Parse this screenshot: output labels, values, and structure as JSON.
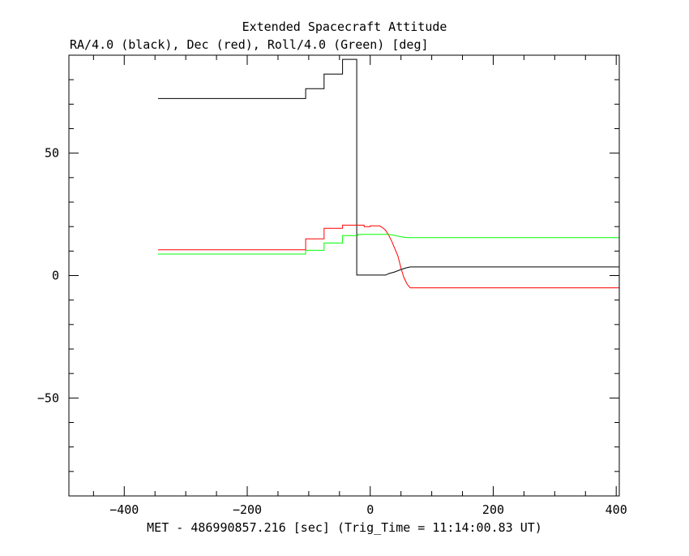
{
  "chart_data": {
    "type": "line",
    "title": "Extended Spacecraft Attitude",
    "subtitle": "RA/4.0 (black), Dec (red), Roll/4.0 (Green) [deg]",
    "xlabel": "MET - 486990857.216 [sec] (Trig_Time = 11:14:00.83 UT)",
    "ylabel": "",
    "xlim": [
      -490,
      405
    ],
    "ylim": [
      -90,
      90
    ],
    "x_ticks": [
      -400,
      -200,
      0,
      200,
      400
    ],
    "y_ticks": [
      -50,
      0,
      50
    ],
    "x_tick_labels": [
      "−400",
      "−200",
      "0",
      "200",
      "400"
    ],
    "y_tick_labels": [
      "−50",
      "0",
      "50"
    ],
    "grid": false,
    "colors": {
      "RA": "#000000",
      "Dec": "#ff0000",
      "Roll": "#00ff00"
    },
    "series": [
      {
        "name": "RA/4.0",
        "color": "#000000",
        "step": true,
        "points": [
          [
            -345,
            72.3
          ],
          [
            -105,
            72.3
          ],
          [
            -105,
            76.3
          ],
          [
            -75,
            76.3
          ],
          [
            -75,
            82.3
          ],
          [
            -45,
            82.3
          ],
          [
            -45,
            88.3
          ],
          [
            -22,
            88.3
          ],
          [
            -22,
            0.2
          ],
          [
            25,
            0.2
          ],
          [
            30,
            0.8
          ],
          [
            40,
            1.5
          ],
          [
            50,
            2.5
          ],
          [
            58,
            3.1
          ],
          [
            65,
            3.5
          ],
          [
            405,
            3.5
          ]
        ]
      },
      {
        "name": "Dec",
        "color": "#ff0000",
        "step": true,
        "points": [
          [
            -345,
            10.5
          ],
          [
            -105,
            10.5
          ],
          [
            -105,
            15
          ],
          [
            -75,
            15
          ],
          [
            -75,
            19.3
          ],
          [
            -45,
            19.3
          ],
          [
            -45,
            20.6
          ],
          [
            -10,
            20.6
          ],
          [
            -10,
            20
          ],
          [
            0,
            20
          ],
          [
            0,
            20.3
          ],
          [
            15,
            20.3
          ],
          [
            20,
            19.6
          ],
          [
            25,
            18.5
          ],
          [
            30,
            16.5
          ],
          [
            35,
            14
          ],
          [
            40,
            11
          ],
          [
            45,
            8
          ],
          [
            50,
            3
          ],
          [
            55,
            -1
          ],
          [
            60,
            -3.5
          ],
          [
            65,
            -5
          ],
          [
            405,
            -5
          ]
        ]
      },
      {
        "name": "Roll/4.0",
        "color": "#00ff00",
        "step": true,
        "points": [
          [
            -345,
            8.8
          ],
          [
            -105,
            8.8
          ],
          [
            -105,
            10.3
          ],
          [
            -75,
            10.3
          ],
          [
            -75,
            13.3
          ],
          [
            -45,
            13.3
          ],
          [
            -45,
            16.3
          ],
          [
            -20,
            16.3
          ],
          [
            -20,
            16.8
          ],
          [
            30,
            16.8
          ],
          [
            40,
            16.4
          ],
          [
            50,
            15.8
          ],
          [
            60,
            15.5
          ],
          [
            405,
            15.5
          ]
        ]
      }
    ]
  }
}
